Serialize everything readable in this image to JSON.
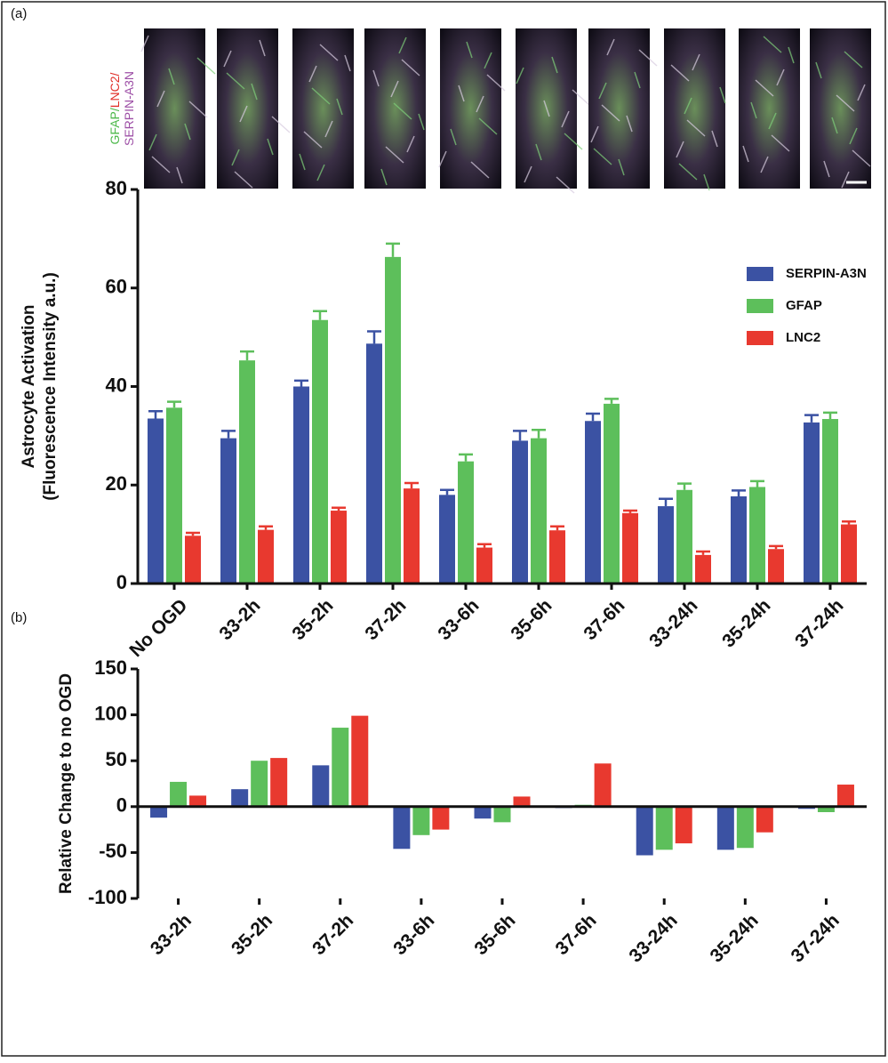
{
  "chart_data": [
    {
      "type": "bar",
      "panel_label": "(a)",
      "image_label": [
        "GFAP/",
        "LNC2/",
        "SERPIN-A3N"
      ],
      "y_label": [
        "Astrocyte Activation",
        "(Fluorescence Intensity a.u.)"
      ],
      "categories": [
        "No OGD",
        "33-2h",
        "35-2h",
        "37-2h",
        "33-6h",
        "35-6h",
        "37-6h",
        "33-24h",
        "35-24h",
        "37-24h"
      ],
      "series": [
        {
          "name": "SERPIN-A3N",
          "color": "#3b52a3",
          "values": [
            33.5,
            29.5,
            40,
            48.7,
            18,
            29,
            33,
            15.7,
            17.7,
            32.7
          ],
          "errors": [
            1.5,
            1.5,
            1.2,
            2.5,
            1,
            2,
            1.5,
            1.5,
            1.2,
            1.5
          ]
        },
        {
          "name": "GFAP",
          "color": "#5dbf5b",
          "values": [
            35.7,
            45.3,
            53.5,
            66.3,
            24.8,
            29.5,
            36.5,
            19,
            19.6,
            33.4
          ],
          "errors": [
            1.2,
            1.8,
            1.8,
            2.7,
            1.4,
            1.7,
            1,
            1.3,
            1.2,
            1.3
          ]
        },
        {
          "name": "LNC2",
          "color": "#e8392f",
          "values": [
            9.7,
            10.9,
            14.8,
            19.3,
            7.3,
            10.8,
            14.3,
            5.8,
            7,
            12
          ],
          "errors": [
            0.6,
            0.7,
            0.6,
            1.1,
            0.7,
            0.8,
            0.5,
            0.7,
            0.6,
            0.6
          ]
        }
      ],
      "ylim": [
        0,
        80
      ],
      "yticks": [
        0,
        20,
        40,
        60,
        80
      ],
      "grid": false,
      "legend": "upper right"
    },
    {
      "type": "bar",
      "panel_label": "(b)",
      "y_label": [
        "Relative Change to no OGD"
      ],
      "categories": [
        "33-2h",
        "35-2h",
        "37-2h",
        "33-6h",
        "35-6h",
        "37-6h",
        "33-24h",
        "35-24h",
        "37-24h"
      ],
      "series": [
        {
          "name": "SERPIN-A3N",
          "color": "#3b52a3",
          "values": [
            -12,
            19,
            45,
            -46,
            -13,
            -1.5,
            -53,
            -47,
            -2.4
          ]
        },
        {
          "name": "GFAP",
          "color": "#5dbf5b",
          "values": [
            27,
            50,
            86,
            -31,
            -17,
            2,
            -47,
            -45,
            -6
          ]
        },
        {
          "name": "LNC2",
          "color": "#e8392f",
          "values": [
            12,
            53,
            99,
            -25,
            11,
            47,
            -40,
            -28,
            24
          ]
        }
      ],
      "ylim": [
        -100,
        150
      ],
      "yticks": [
        -100,
        -50,
        0,
        50,
        100,
        150
      ],
      "grid": false
    }
  ]
}
